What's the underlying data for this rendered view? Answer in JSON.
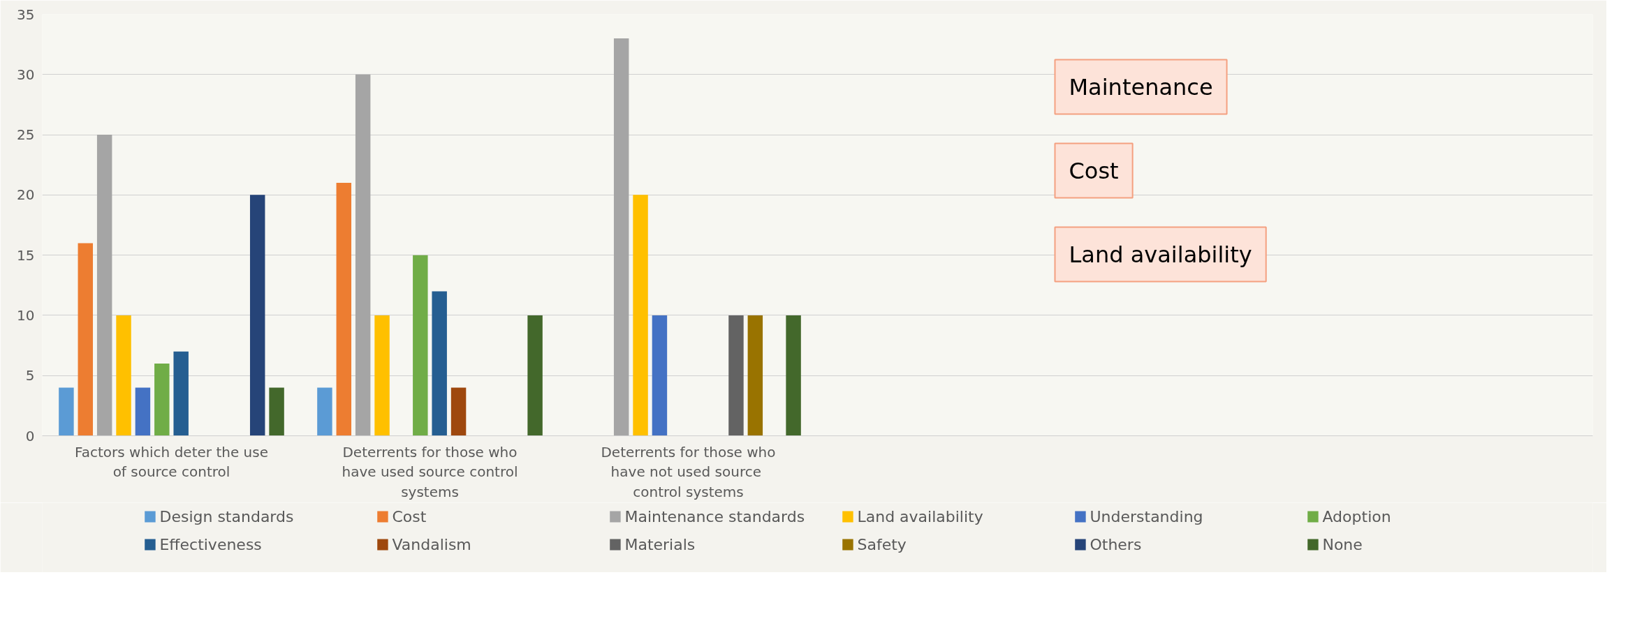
{
  "chart_data": {
    "type": "bar",
    "categories": [
      "Factors which deter the use of source control",
      "Deterrents for those who have used source control systems",
      "Deterrents for those who have not  used source control systems",
      null,
      null,
      null
    ],
    "series": [
      {
        "name": "Design standards",
        "color": "#5b9bd5",
        "values": [
          4,
          4,
          0,
          null,
          null,
          null
        ]
      },
      {
        "name": "Cost",
        "color": "#ed7d31",
        "values": [
          16,
          21,
          0,
          null,
          null,
          null
        ]
      },
      {
        "name": "Maintenance standards",
        "color": "#a5a5a5",
        "values": [
          25,
          30,
          33,
          null,
          null,
          null
        ]
      },
      {
        "name": "Land availability",
        "color": "#ffc000",
        "values": [
          10,
          10,
          20,
          null,
          null,
          null
        ]
      },
      {
        "name": "Understanding",
        "color": "#4472c4",
        "values": [
          4,
          0,
          10,
          null,
          null,
          null
        ]
      },
      {
        "name": "Adoption",
        "color": "#70ad47",
        "values": [
          6,
          15,
          0,
          null,
          null,
          null
        ]
      },
      {
        "name": "Effectiveness",
        "color": "#255e91",
        "values": [
          7,
          12,
          0,
          null,
          null,
          null
        ]
      },
      {
        "name": "Vandalism",
        "color": "#9e480e",
        "values": [
          0,
          4,
          0,
          null,
          null,
          null
        ]
      },
      {
        "name": "Materials",
        "color": "#636363",
        "values": [
          0,
          0,
          10,
          null,
          null,
          null
        ]
      },
      {
        "name": "Safety",
        "color": "#997300",
        "values": [
          0,
          0,
          10,
          null,
          null,
          null
        ]
      },
      {
        "name": "Others",
        "color": "#264478",
        "values": [
          20,
          0,
          0,
          null,
          null,
          null
        ]
      },
      {
        "name": "None",
        "color": "#43682b",
        "values": [
          4,
          10,
          10,
          null,
          null,
          null
        ]
      }
    ],
    "ylim": [
      0,
      35
    ],
    "yticks": [
      0,
      5,
      10,
      15,
      20,
      25,
      30,
      35
    ],
    "grid": "y",
    "legend": "bottom",
    "annotations": [
      "Maintenance",
      "Cost",
      "Land availability"
    ]
  }
}
